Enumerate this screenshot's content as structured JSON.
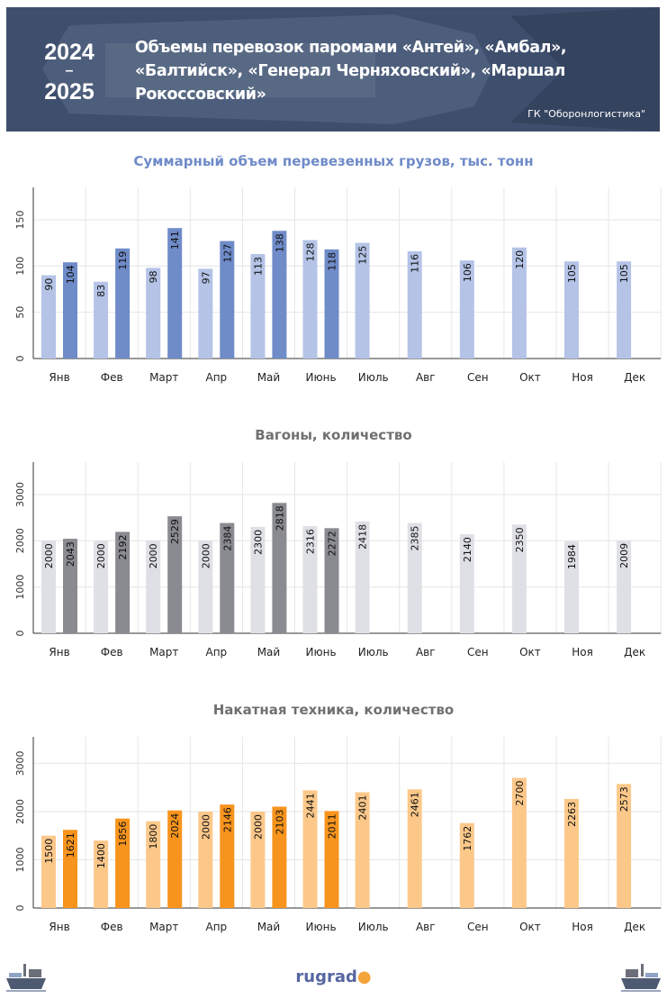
{
  "header": {
    "year_start": "2024",
    "year_dash": "–",
    "year_end": "2025",
    "title": "Объемы перевозок паромами «Антей», «Амбал», «Балтийск», «Генерал Черняховский», «Маршал Рокоссовский»",
    "source": "ГК \"Оборонлогистика\""
  },
  "footer": {
    "logo": "rugrad"
  },
  "colors": {
    "cargo_prev": "#b4c3e6",
    "cargo_curr": "#6f8bc8",
    "wagons_prev": "#dfe0e6",
    "wagons_curr": "#8a8b91",
    "vehicles_prev": "#fcc88a",
    "vehicles_curr": "#f7941d"
  },
  "chart_data": [
    {
      "type": "bar",
      "title": "Суммарный объем перевезенных грузов, тыс. тонн",
      "categories": [
        "Янв",
        "Фев",
        "Март",
        "Апр",
        "Май",
        "Июнь",
        "Июль",
        "Авг",
        "Сен",
        "Окт",
        "Ноя",
        "Дек"
      ],
      "series": [
        {
          "values": [
            90,
            83,
            98,
            97,
            113,
            128,
            125,
            116,
            106,
            120,
            105,
            105
          ]
        },
        {
          "values": [
            104,
            119,
            141,
            127,
            138,
            118,
            null,
            null,
            null,
            null,
            null,
            null
          ]
        }
      ],
      "ylim": [
        0,
        185
      ],
      "yticks": [
        0,
        50,
        100,
        150
      ],
      "grid": true
    },
    {
      "type": "bar",
      "title": "Вагоны, количество",
      "categories": [
        "Янв",
        "Фев",
        "Март",
        "Апр",
        "Май",
        "Июнь",
        "Июль",
        "Авг",
        "Сен",
        "Окт",
        "Ноя",
        "Дек"
      ],
      "series": [
        {
          "values": [
            2000,
            2000,
            2000,
            2000,
            2300,
            2316,
            2418,
            2385,
            2140,
            2350,
            1984,
            2009
          ]
        },
        {
          "values": [
            2043,
            2192,
            2529,
            2384,
            2818,
            2272,
            null,
            null,
            null,
            null,
            null,
            null
          ]
        }
      ],
      "ylim": [
        0,
        3700
      ],
      "yticks": [
        0,
        1000,
        2000,
        3000
      ],
      "grid": true
    },
    {
      "type": "bar",
      "title": "Накатная техника, количество",
      "categories": [
        "Янв",
        "Фев",
        "Март",
        "Апр",
        "Май",
        "Июнь",
        "Июль",
        "Авг",
        "Сен",
        "Окт",
        "Ноя",
        "Дек"
      ],
      "series": [
        {
          "values": [
            1500,
            1400,
            1800,
            2000,
            2000,
            2441,
            2401,
            2461,
            1762,
            2700,
            2263,
            2573
          ]
        },
        {
          "values": [
            1621,
            1856,
            2024,
            2146,
            2103,
            2011,
            null,
            null,
            null,
            null,
            null,
            null
          ]
        }
      ],
      "ylim": [
        0,
        3550
      ],
      "yticks": [
        0,
        1000,
        2000,
        3000
      ],
      "grid": true
    }
  ]
}
